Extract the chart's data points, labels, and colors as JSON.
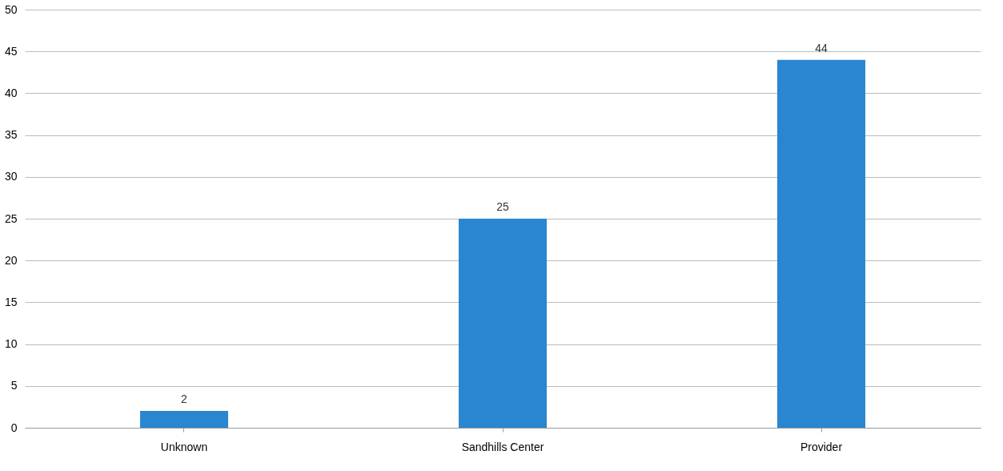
{
  "chart_data": {
    "type": "bar",
    "categories": [
      "Unknown",
      "Sandhills Center",
      "Provider"
    ],
    "values": [
      2,
      25,
      44
    ],
    "color": "#2a86d0",
    "ylim": [
      0,
      50
    ],
    "yticks": [
      0,
      5,
      10,
      15,
      20,
      25,
      30,
      35,
      40,
      45,
      50
    ],
    "grid": "y",
    "data_labels": true
  }
}
